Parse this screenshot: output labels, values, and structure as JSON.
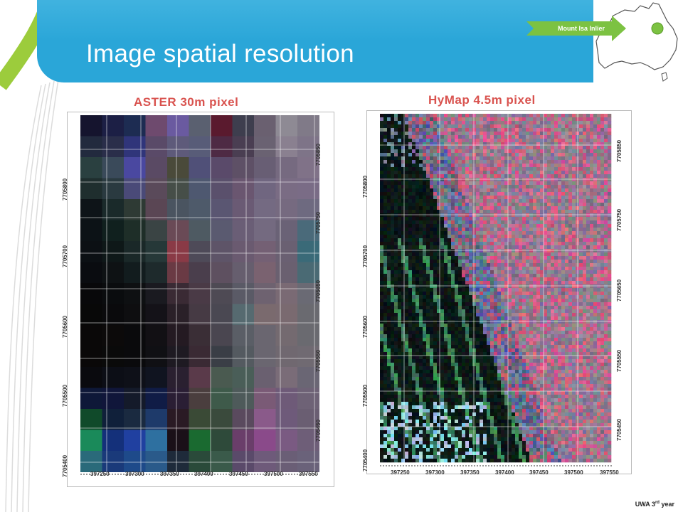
{
  "slide": {
    "title": "Image spatial resolution",
    "footer_text": "UWA 3",
    "footer_superscript": "rd",
    "footer_suffix": " year"
  },
  "map_inset": {
    "callout_label": "Mount Isa Inlier",
    "marker_color": "#7cc242"
  },
  "colors": {
    "header_blue": "#2aa6d8",
    "accent_green": "#9ccc3c",
    "panel_title_red": "#d9534f"
  },
  "aster_panel": {
    "title": "ASTER 30m pixel",
    "easting_labels": [
      "397250",
      "397300",
      "397350",
      "397400",
      "397450",
      "397500",
      "397550"
    ],
    "northing_labels_left": [
      "7705800",
      "7705700",
      "7705600",
      "7705500",
      "7705400"
    ],
    "northing_labels_right": [
      "7705850",
      "7705750",
      "7705650",
      "7705550",
      "7705450"
    ]
  },
  "hymap_panel": {
    "title": "HyMap 4.5m pixel",
    "easting_labels": [
      "397250",
      "397300",
      "397350",
      "397400",
      "397450",
      "397500",
      "397550"
    ],
    "northing_labels_left": [
      "7705800",
      "7705700",
      "7705600",
      "7705500",
      "7705400"
    ],
    "northing_labels_right": [
      "7705850",
      "7705750",
      "7705650",
      "7705550",
      "7705450"
    ]
  }
}
